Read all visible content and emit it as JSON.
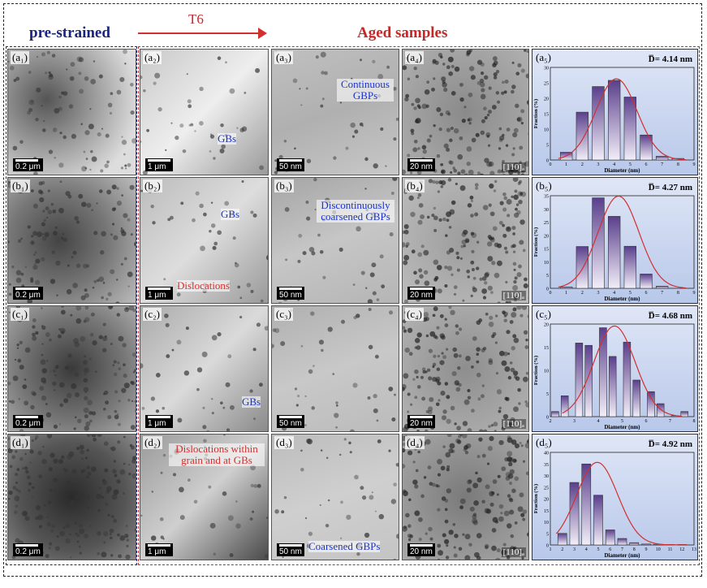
{
  "headers": {
    "pre": "pre-strained",
    "t6": "T6",
    "aged": "Aged samples"
  },
  "rows": [
    {
      "labels": [
        "(a₁)",
        "(a₂)",
        "(a₃)",
        "(a₄)",
        "(a₅)"
      ],
      "scales": [
        "0.2 μm",
        "1 μm",
        "50 nm",
        "20 nm"
      ],
      "zone": "[110]ₐ",
      "annotations": [
        "GBs",
        "Continuous GBPs"
      ],
      "diameter": "D̅= 4.14 nm",
      "chart": {
        "type": "bar",
        "xlabel": "Diameter (nm)",
        "ylabel": "Fraction (%)",
        "xlim": [
          0,
          9
        ],
        "ylim": [
          0,
          30
        ],
        "x": [
          1,
          2,
          3,
          4,
          5,
          6,
          7,
          8
        ],
        "values": [
          2.5,
          15.5,
          23.8,
          25.8,
          20.4,
          8.1,
          1.2,
          0.5
        ],
        "mean": 4.14
      }
    },
    {
      "labels": [
        "(b₁)",
        "(b₂)",
        "(b₃)",
        "(b₄)",
        "(b₅)"
      ],
      "scales": [
        "0.2 μm",
        "1 μm",
        "50 nm",
        "20 nm"
      ],
      "zone": "[110]ₐ",
      "annotations": [
        "GBs",
        "Dislocations",
        "Discontinuously coarsened GBPs"
      ],
      "diameter": "D̅= 4.27 nm",
      "chart": {
        "type": "bar",
        "xlabel": "Diameter (nm)",
        "ylabel": "Fraction (%)",
        "xlim": [
          0,
          9
        ],
        "ylim": [
          0,
          35
        ],
        "x": [
          1,
          2,
          3,
          4,
          5,
          6,
          7
        ],
        "values": [
          0.5,
          15.8,
          34.2,
          27.2,
          15.9,
          5.4,
          0.8
        ],
        "mean": 4.27
      }
    },
    {
      "labels": [
        "(c₁)",
        "(c₂)",
        "(c₃)",
        "(c₄)",
        "(c₅)"
      ],
      "scales": [
        "0.2 μm",
        "1 μm",
        "50 nm",
        "20 nm"
      ],
      "zone": "[110]ₐ",
      "annotations": [
        "GBs"
      ],
      "diameter": "D̅= 4.68 nm",
      "chart": {
        "type": "bar",
        "xlabel": "Diameter (nm)",
        "ylabel": "Fraction (%)",
        "xlim": [
          2,
          8
        ],
        "ylim": [
          0,
          20
        ],
        "x": [
          2.2,
          2.6,
          3.2,
          3.6,
          4.2,
          4.6,
          5.2,
          5.6,
          6.2,
          6.6,
          7.2,
          7.6
        ],
        "values": [
          1.1,
          4.5,
          15.9,
          15.4,
          19.2,
          13.0,
          16.1,
          7.9,
          5.4,
          2.8,
          0.2,
          1.1
        ],
        "mean": 4.68
      }
    },
    {
      "labels": [
        "(d₁)",
        "(d₂)",
        "(d₃)",
        "(d₄)",
        "(d₅)"
      ],
      "scales": [
        "0.2 μm",
        "1 μm",
        "50 nm",
        "20 nm"
      ],
      "zone": "[110]ₐ",
      "annotations": [
        "Dislocations within grain and at GBs",
        "Coarsened GBPs"
      ],
      "diameter": "D̅= 4.92 nm",
      "chart": {
        "type": "bar",
        "xlabel": "Diameter (nm)",
        "ylabel": "Fraction (%)",
        "xlim": [
          1,
          13
        ],
        "ylim": [
          0,
          40
        ],
        "x": [
          2,
          3,
          4,
          5,
          6,
          7,
          8,
          9,
          10,
          11,
          12
        ],
        "values": [
          5,
          27,
          35,
          21.5,
          6.5,
          2.8,
          1,
          0.4,
          0.3,
          0.2,
          0.2
        ],
        "mean": 4.92
      }
    }
  ],
  "colors": {
    "pre_border": "#1a237e",
    "aged_border": "#c62828",
    "bar_fill": "#8e6bb8",
    "fit_curve": "#d32f2f",
    "annotation_blue": "#1a33cc",
    "annotation_red": "#d32f2f"
  }
}
